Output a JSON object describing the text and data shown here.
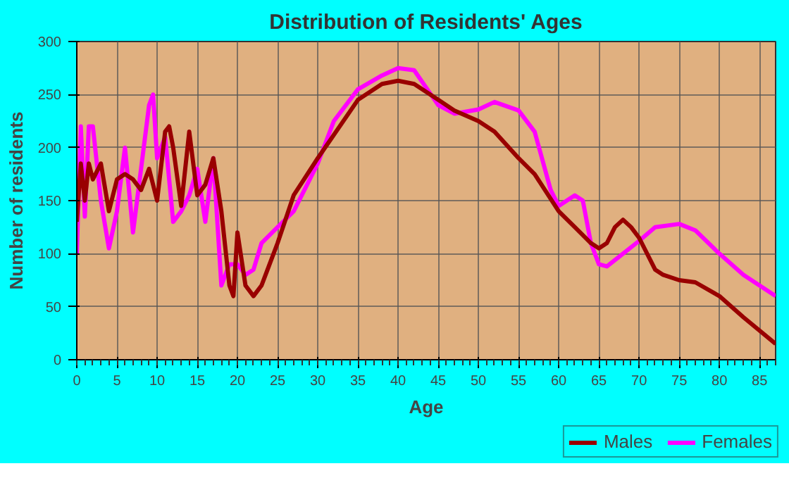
{
  "chart_data": {
    "type": "line",
    "title": "Distribution of Residents' Ages",
    "xlabel": "Age",
    "ylabel": "Number of residents",
    "xlim": [
      0,
      87
    ],
    "ylim": [
      0,
      300
    ],
    "xticks": [
      0,
      5,
      10,
      15,
      20,
      25,
      30,
      35,
      40,
      45,
      50,
      55,
      60,
      65,
      70,
      75,
      80,
      85
    ],
    "yticks": [
      0,
      50,
      100,
      150,
      200,
      250,
      300
    ],
    "grid": true,
    "legend": "bottom right",
    "line_style": "solid",
    "marker": "none",
    "series": [
      {
        "name": "Males",
        "color": "#990000",
        "x": [
          0,
          0.5,
          1,
          1.5,
          2,
          3,
          4,
          5,
          6,
          7,
          8,
          9,
          10,
          11,
          11.5,
          12,
          13,
          14,
          15,
          16,
          17,
          18,
          19,
          19.5,
          20,
          21,
          22,
          23,
          24,
          25,
          27,
          30,
          35,
          38,
          40,
          42,
          45,
          47,
          50,
          52,
          55,
          57,
          60,
          62,
          64,
          65,
          66,
          67,
          68,
          69,
          70,
          72,
          73,
          75,
          77,
          80,
          83,
          87
        ],
        "values": [
          130,
          185,
          150,
          185,
          170,
          185,
          140,
          170,
          175,
          170,
          160,
          180,
          150,
          215,
          220,
          200,
          145,
          215,
          155,
          165,
          190,
          140,
          70,
          60,
          120,
          70,
          60,
          70,
          90,
          110,
          155,
          190,
          245,
          260,
          263,
          260,
          245,
          235,
          225,
          215,
          190,
          175,
          140,
          125,
          110,
          105,
          110,
          125,
          132,
          125,
          115,
          85,
          80,
          75,
          73,
          60,
          40,
          15
        ]
      },
      {
        "name": "Females",
        "color": "#ff00ff",
        "x": [
          0,
          0.5,
          1,
          1.5,
          2,
          3,
          4,
          5,
          6,
          7,
          8,
          9,
          9.5,
          10,
          11,
          12,
          13,
          14,
          15,
          16,
          17,
          18,
          19,
          20,
          21,
          22,
          23,
          25,
          27,
          30,
          32,
          35,
          38,
          40,
          42,
          45,
          47,
          50,
          52,
          55,
          57,
          59,
          60,
          62,
          63,
          64,
          65,
          66,
          68,
          70,
          72,
          75,
          77,
          80,
          83,
          87
        ],
        "values": [
          100,
          220,
          135,
          220,
          220,
          150,
          105,
          140,
          200,
          120,
          180,
          240,
          250,
          190,
          210,
          130,
          140,
          155,
          180,
          130,
          190,
          70,
          90,
          90,
          80,
          85,
          110,
          125,
          140,
          185,
          225,
          255,
          268,
          275,
          273,
          240,
          232,
          236,
          243,
          235,
          215,
          160,
          145,
          155,
          150,
          110,
          90,
          88,
          100,
          112,
          125,
          128,
          122,
          100,
          80,
          60
        ]
      }
    ]
  }
}
